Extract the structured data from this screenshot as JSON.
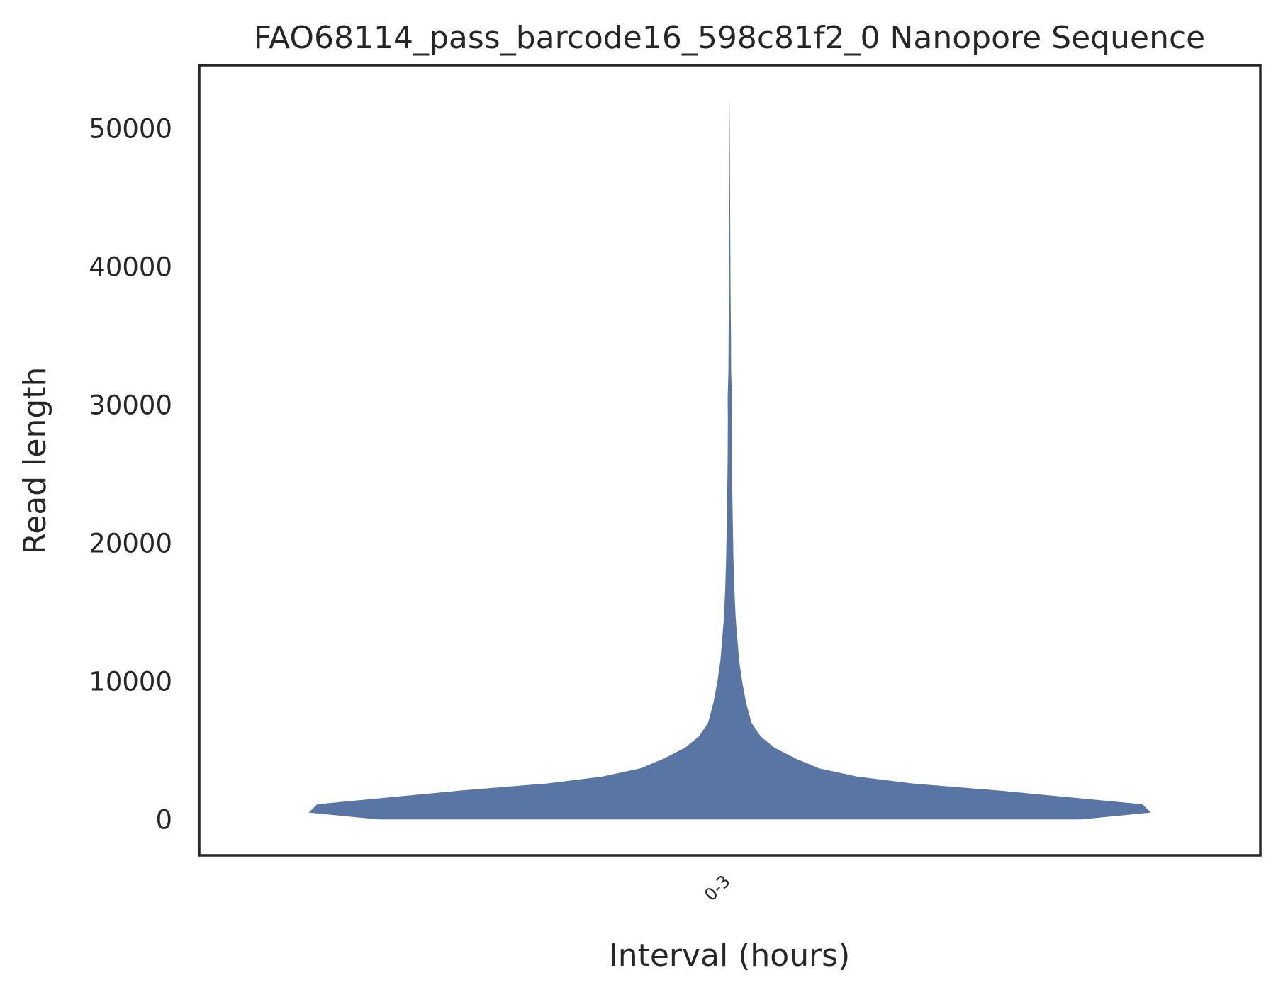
{
  "chart_data": {
    "type": "violin",
    "title": "FAO68114_pass_barcode16_598c81f2_0 Nanopore Sequence",
    "xlabel": "Interval (hours)",
    "ylabel": "Read length",
    "categories": [
      "0-3"
    ],
    "ylim": [
      -2600,
      54600
    ],
    "yticks": [
      0,
      10000,
      20000,
      30000,
      40000,
      50000
    ],
    "ytick_labels": [
      "0",
      "10000",
      "20000",
      "30000",
      "40000",
      "50000"
    ],
    "grid": false,
    "color": "#5975a4",
    "violin_min": 0,
    "violin_max": 52300,
    "profile": [
      {
        "y": 0,
        "w": 0.827
      },
      {
        "y": 500,
        "w": 0.99
      },
      {
        "y": 1100,
        "w": 0.97
      },
      {
        "y": 1600,
        "w": 0.8
      },
      {
        "y": 2100,
        "w": 0.63
      },
      {
        "y": 2600,
        "w": 0.43
      },
      {
        "y": 3100,
        "w": 0.3
      },
      {
        "y": 3700,
        "w": 0.21
      },
      {
        "y": 4400,
        "w": 0.155
      },
      {
        "y": 5200,
        "w": 0.105
      },
      {
        "y": 6000,
        "w": 0.073
      },
      {
        "y": 7000,
        "w": 0.051
      },
      {
        "y": 8500,
        "w": 0.038
      },
      {
        "y": 10000,
        "w": 0.029
      },
      {
        "y": 11500,
        "w": 0.022
      },
      {
        "y": 13000,
        "w": 0.018
      },
      {
        "y": 14500,
        "w": 0.014
      },
      {
        "y": 16500,
        "w": 0.011
      },
      {
        "y": 19000,
        "w": 0.0085
      },
      {
        "y": 22500,
        "w": 0.0065
      },
      {
        "y": 26000,
        "w": 0.005
      },
      {
        "y": 29000,
        "w": 0.0045
      },
      {
        "y": 30500,
        "w": 0.005
      },
      {
        "y": 32500,
        "w": 0.0032
      },
      {
        "y": 35000,
        "w": 0.0028
      },
      {
        "y": 38000,
        "w": 0.0018
      },
      {
        "y": 42000,
        "w": 0.0012
      },
      {
        "y": 46000,
        "w": 0.0007
      },
      {
        "y": 50000,
        "w": 0.0003
      },
      {
        "y": 52300,
        "w": 0.0
      }
    ]
  }
}
